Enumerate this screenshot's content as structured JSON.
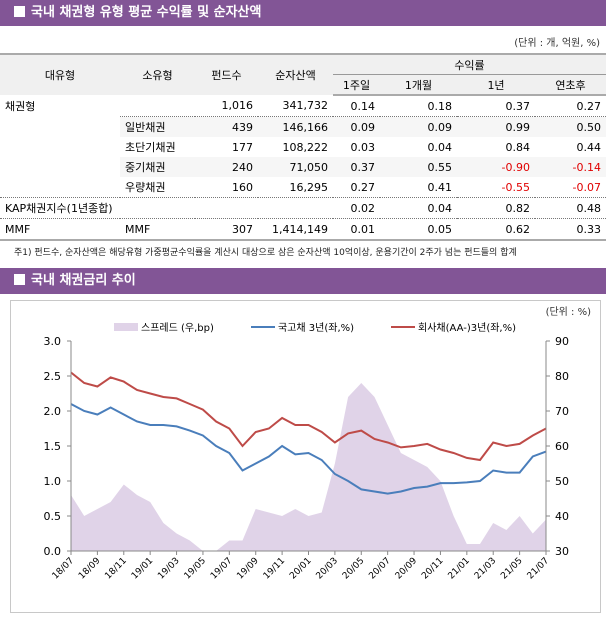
{
  "section1": {
    "title": "국내 채권형 유형 평균 수익률 및 순자산액",
    "unit": "(단위 : 개, 억원, %)",
    "headers": {
      "major": "대유형",
      "minor": "소유형",
      "funds": "펀드수",
      "nav": "순자산액",
      "returns": "수익률",
      "w1": "1주일",
      "m1": "1개월",
      "y1": "1년",
      "ytd": "연초후"
    },
    "rows": [
      {
        "major": "채권형",
        "minor": "",
        "funds": "1,016",
        "nav": "341,732",
        "w1": "0.14",
        "m1": "0.18",
        "y1": "0.37",
        "ytd": "0.27"
      },
      {
        "major": "",
        "minor": "일반채권",
        "funds": "439",
        "nav": "146,166",
        "w1": "0.09",
        "m1": "0.09",
        "y1": "0.99",
        "ytd": "0.50"
      },
      {
        "major": "",
        "minor": "초단기채권",
        "funds": "177",
        "nav": "108,222",
        "w1": "0.03",
        "m1": "0.04",
        "y1": "0.84",
        "ytd": "0.44"
      },
      {
        "major": "",
        "minor": "중기채권",
        "funds": "240",
        "nav": "71,050",
        "w1": "0.37",
        "m1": "0.55",
        "y1": "-0.90",
        "ytd": "-0.14"
      },
      {
        "major": "",
        "minor": "우량채권",
        "funds": "160",
        "nav": "16,295",
        "w1": "0.27",
        "m1": "0.41",
        "y1": "-0.55",
        "ytd": "-0.07"
      },
      {
        "major": "KAP채권지수(1년종합)",
        "minor": "",
        "funds": "",
        "nav": "",
        "w1": "0.02",
        "m1": "0.04",
        "y1": "0.82",
        "ytd": "0.48"
      },
      {
        "major": "MMF",
        "minor": "MMF",
        "funds": "307",
        "nav": "1,414,149",
        "w1": "0.01",
        "m1": "0.05",
        "y1": "0.62",
        "ytd": "0.33"
      }
    ],
    "negative_color": "#e00000",
    "footnote": "주1) 펀드수, 순자산액은 해당유형 가중평균수익률을 계산시 대상으로 삼은 순자산액 10억이상, 운용기간이 2주가 넘는 펀드들의 합계"
  },
  "section2": {
    "title": "국내 채권금리 추이",
    "unit": "(단위 : %)"
  },
  "header_color": "#825596",
  "chart_data": {
    "type": "line",
    "x_tick_labels": [
      "18/07",
      "18/09",
      "18/11",
      "19/01",
      "19/03",
      "19/05",
      "19/07",
      "19/09",
      "19/11",
      "20/01",
      "20/03",
      "20/05",
      "20/07",
      "20/09",
      "20/11",
      "21/01",
      "21/03",
      "21/05",
      "21/07"
    ],
    "x": [
      "18/07",
      "18/08",
      "18/09",
      "18/10",
      "18/11",
      "18/12",
      "19/01",
      "19/02",
      "19/03",
      "19/04",
      "19/05",
      "19/06",
      "19/07",
      "19/08",
      "19/09",
      "19/10",
      "19/11",
      "19/12",
      "20/01",
      "20/02",
      "20/03",
      "20/04",
      "20/05",
      "20/06",
      "20/07",
      "20/08",
      "20/09",
      "20/10",
      "20/11",
      "20/12",
      "21/01",
      "21/02",
      "21/03",
      "21/04",
      "21/05",
      "21/06",
      "21/07"
    ],
    "y_left": {
      "min": 0.0,
      "max": 3.0,
      "ticks": [
        "0.0",
        "0.5",
        "1.0",
        "1.5",
        "2.0",
        "2.5",
        "3.0"
      ]
    },
    "y_right": {
      "min": 30,
      "max": 90,
      "ticks": [
        "30",
        "40",
        "50",
        "60",
        "70",
        "80",
        "90"
      ]
    },
    "legend_position": "top",
    "grid": false,
    "series": [
      {
        "name": "스프레드 (우,bp)",
        "type": "area",
        "axis": "right",
        "color": "#e0d3e8",
        "values": [
          46,
          40,
          42,
          44,
          49,
          46,
          44,
          38,
          35,
          33,
          30,
          30,
          33,
          33,
          42,
          41,
          40,
          42,
          40,
          41,
          55,
          74,
          78,
          74,
          66,
          58,
          56,
          54,
          50,
          40,
          32,
          32,
          38,
          36,
          40,
          35,
          39
        ]
      },
      {
        "name": "국고채 3년(좌,%)",
        "type": "line",
        "axis": "left",
        "color": "#4a7ebb",
        "values": [
          2.1,
          2.0,
          1.95,
          2.05,
          1.95,
          1.85,
          1.8,
          1.8,
          1.78,
          1.72,
          1.65,
          1.5,
          1.4,
          1.15,
          1.25,
          1.35,
          1.5,
          1.38,
          1.4,
          1.3,
          1.1,
          1.0,
          0.88,
          0.85,
          0.82,
          0.85,
          0.9,
          0.92,
          0.97,
          0.97,
          0.98,
          1.0,
          1.15,
          1.12,
          1.12,
          1.35,
          1.42
        ]
      },
      {
        "name": "회사채(AA-)3년(좌,%)",
        "type": "line",
        "axis": "left",
        "color": "#be4b48",
        "values": [
          2.55,
          2.4,
          2.35,
          2.48,
          2.42,
          2.3,
          2.25,
          2.2,
          2.18,
          2.1,
          2.02,
          1.85,
          1.75,
          1.5,
          1.7,
          1.75,
          1.9,
          1.8,
          1.8,
          1.7,
          1.55,
          1.68,
          1.72,
          1.6,
          1.55,
          1.48,
          1.5,
          1.53,
          1.45,
          1.4,
          1.33,
          1.3,
          1.55,
          1.5,
          1.53,
          1.65,
          1.75
        ]
      }
    ]
  }
}
